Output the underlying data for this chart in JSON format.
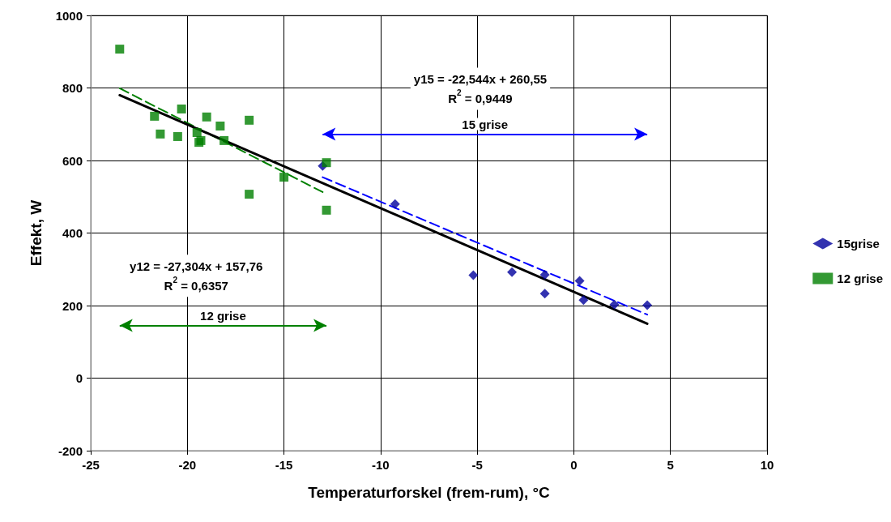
{
  "chart_data": {
    "type": "scatter",
    "xlabel": "Temperaturforskel (frem-rum), °C",
    "ylabel": "Effekt, W",
    "xlim": [
      -25,
      10
    ],
    "xticks": [
      -25,
      -20,
      -15,
      -10,
      -5,
      0,
      5,
      10
    ],
    "ylim": [
      -200,
      1000
    ],
    "yticks": [
      -200,
      0,
      200,
      400,
      600,
      800,
      1000
    ],
    "grid": true,
    "legend": "right",
    "series": [
      {
        "name": "15grise",
        "marker": "diamond",
        "color": "#00009c",
        "x": [
          -13,
          -9.25,
          -5.2,
          -3.2,
          -1.5,
          -1.5,
          0.3,
          0.5,
          2.1,
          3.8
        ],
        "values": [
          585,
          480,
          284,
          292,
          285,
          233,
          268,
          215,
          203,
          201
        ]
      },
      {
        "name": "12 grise",
        "marker": "square",
        "color": "#008000",
        "x": [
          -23.5,
          -21.7,
          -21.4,
          -20.5,
          -20.3,
          -19,
          -19.5,
          -19.4,
          -19.3,
          -18.3,
          -18.1,
          -16.8,
          -16.8,
          -15,
          -12.8,
          -12.8
        ],
        "values": [
          907,
          722,
          673,
          666,
          742,
          720,
          677,
          650,
          655,
          695,
          655,
          711,
          507,
          554,
          594,
          463
        ]
      },
      {
        "type": "line",
        "marker": "none",
        "line_style": "dashed",
        "color": "#0000ff",
        "x": [
          -13,
          3.8
        ],
        "values": [
          554,
          175
        ]
      },
      {
        "type": "line",
        "marker": "none",
        "line_style": "dashed",
        "color": "#008000",
        "x": [
          -23.5,
          -13
        ],
        "values": [
          799,
          513
        ]
      },
      {
        "type": "line",
        "marker": "none",
        "line_style": "solid",
        "color": "#000000",
        "x": [
          -23.5,
          3.8
        ],
        "values": [
          780,
          150
        ]
      }
    ],
    "annotations": [
      "y15 = -22,544x + 260,55\nR$^{2}$ = 0,9449",
      "y12 = -27,304x + 157,76\nR$^{2}$ = 0,6357",
      "15 grise",
      "12 grise"
    ]
  }
}
